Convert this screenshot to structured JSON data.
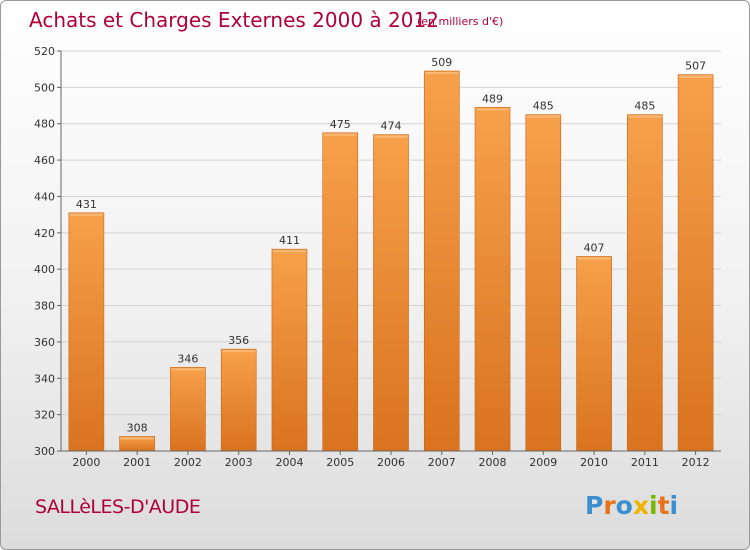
{
  "chart_data": {
    "type": "bar",
    "title": "Achats et Charges Externes 2000 à 2012",
    "subtitle": "(en milliers d'€)",
    "categories": [
      "2000",
      "2001",
      "2002",
      "2003",
      "2004",
      "2005",
      "2006",
      "2007",
      "2008",
      "2009",
      "2010",
      "2011",
      "2012"
    ],
    "values": [
      431,
      308,
      346,
      356,
      411,
      475,
      474,
      509,
      489,
      485,
      407,
      485,
      507
    ],
    "ylim": [
      300,
      520
    ],
    "yticks": [
      300,
      320,
      340,
      360,
      380,
      400,
      420,
      440,
      460,
      480,
      500,
      520
    ],
    "grid": true,
    "legend": "none",
    "colors": {
      "bar_light": "#f7a04a",
      "bar_dark": "#d9731f",
      "bar_edge": "#c96412",
      "title": "#b0003a",
      "axis_text": "#333333"
    }
  },
  "footer": {
    "commune": "SALLèLES-D'AUDE",
    "brand": "Proxiti",
    "brand_colors": [
      "#3c8fcf",
      "#e8731a",
      "#3c8fcf",
      "#f0b400",
      "#7ab800",
      "#e8731a",
      "#3c8fcf"
    ]
  }
}
